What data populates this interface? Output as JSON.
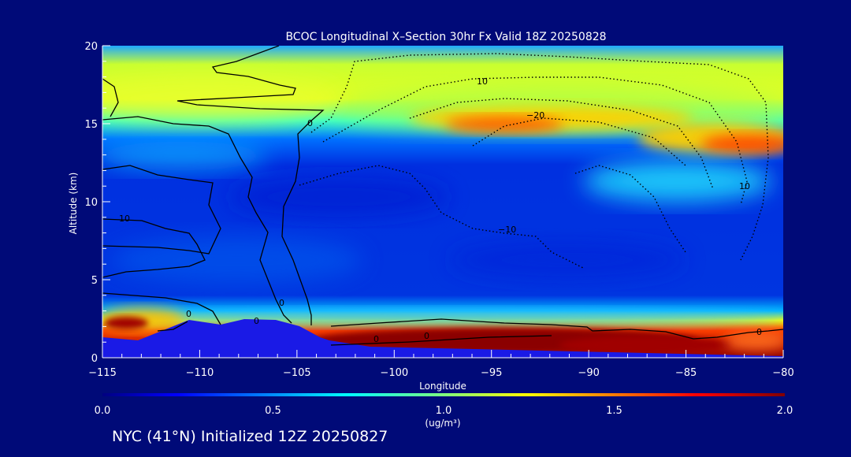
{
  "chart_data": {
    "type": "heatmap",
    "title": "BCOC Longitudinal X–Section 30hr  Fx Valid 18Z 20250828",
    "xlabel": "Longitude",
    "ylabel": "Altitude (km)",
    "x_ticks": [
      "−115",
      "−110",
      "−105",
      "−100",
      "−95",
      "−90",
      "−85",
      "−80"
    ],
    "y_ticks": [
      "0",
      "5",
      "10",
      "15",
      "20"
    ],
    "xlim": [
      -115,
      -80
    ],
    "ylim": [
      0,
      20
    ],
    "colorbar": {
      "min": 0.0,
      "max": 2.0,
      "tick_labels": [
        "0.0",
        "0.5",
        "1.0",
        "1.5",
        "2.0"
      ],
      "units": "(ug/m³)",
      "colormap": "jet"
    },
    "features": [
      {
        "label": "upper-level layer",
        "lon_range": [
          -115,
          -80
        ],
        "alt_km": [
          13.5,
          17.5
        ],
        "value": 1.0
      },
      {
        "label": "upper-level maximum",
        "lon_range": [
          -97,
          -91
        ],
        "alt_km": [
          14.5,
          15.5
        ],
        "value": 1.6
      },
      {
        "label": "upper-level maximum",
        "lon_range": [
          -86,
          -80
        ],
        "alt_km": [
          13,
          14.5
        ],
        "value": 1.6
      },
      {
        "label": "boundary-layer maximum",
        "lon_range": [
          -103,
          -85
        ],
        "alt_km": [
          0.5,
          2.2
        ],
        "value": 2.0
      },
      {
        "label": "boundary-layer maximum",
        "lon_range": [
          -115,
          -111
        ],
        "alt_km": [
          1.5,
          2.8
        ],
        "value": 1.8
      },
      {
        "label": "mid-level background",
        "lon_range": [
          -115,
          -80
        ],
        "alt_km": [
          3,
          12
        ],
        "value": 0.2
      }
    ],
    "contour_labels": [
      "10",
      "−20",
      "10",
      "−10",
      "0",
      "10",
      "0",
      "0",
      "0",
      "0",
      "0",
      "0"
    ]
  },
  "colors": {
    "background": "#000a78",
    "terrain": "#1a1ae6",
    "axis": "#ffffff",
    "contour": "#000000"
  },
  "footer": "NYC (41°N) Initialized 12Z 20250827"
}
